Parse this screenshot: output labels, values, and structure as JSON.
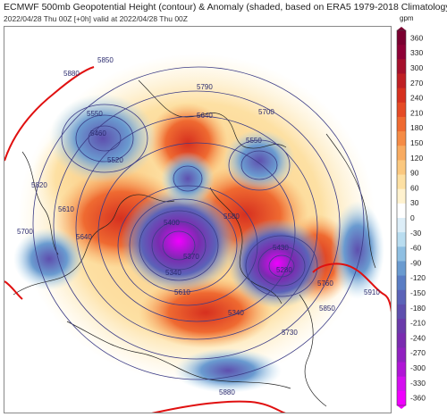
{
  "header": {
    "title": "ECMWF 500mb Geopotential Height (contour) & Anomaly (shaded, based on ERA5 1979-2018 Climatology)",
    "subtitle": "2022/04/28 Thu 00Z [+0h] valid at 2022/04/28 Thu 00Z",
    "unit": "gpm"
  },
  "colorbar": {
    "ticks": [
      360,
      330,
      300,
      270,
      240,
      210,
      180,
      150,
      120,
      90,
      60,
      30,
      0,
      -30,
      -60,
      -90,
      -120,
      -150,
      -180,
      -210,
      -240,
      -270,
      -300,
      -330,
      -360
    ],
    "colors": [
      "#7a0030",
      "#8e0036",
      "#a5102c",
      "#bf1f24",
      "#d6301f",
      "#e54a25",
      "#ef6a31",
      "#f58b45",
      "#f8ab61",
      "#fbc87f",
      "#fde0a3",
      "#fff2cf",
      "#ffffff",
      "#ddeef8",
      "#b9ddf0",
      "#8fbfe2",
      "#6a9bd0",
      "#5a7dc4",
      "#5b63b8",
      "#5e4fae",
      "#6a3aaa",
      "#7a2bb0",
      "#9021c0",
      "#b016d6",
      "#d40ff0",
      "#f000ff"
    ]
  },
  "contour_labels": [
    "5880",
    "5850",
    "5790",
    "5700",
    "5550",
    "5460",
    "5520",
    "5640",
    "5820",
    "5700",
    "5610",
    "5550",
    "5400",
    "5370",
    "5340",
    "5430",
    "5580",
    "5280",
    "5610",
    "5760",
    "5850",
    "5910",
    "5730",
    "5880",
    "5640",
    "5340"
  ]
}
